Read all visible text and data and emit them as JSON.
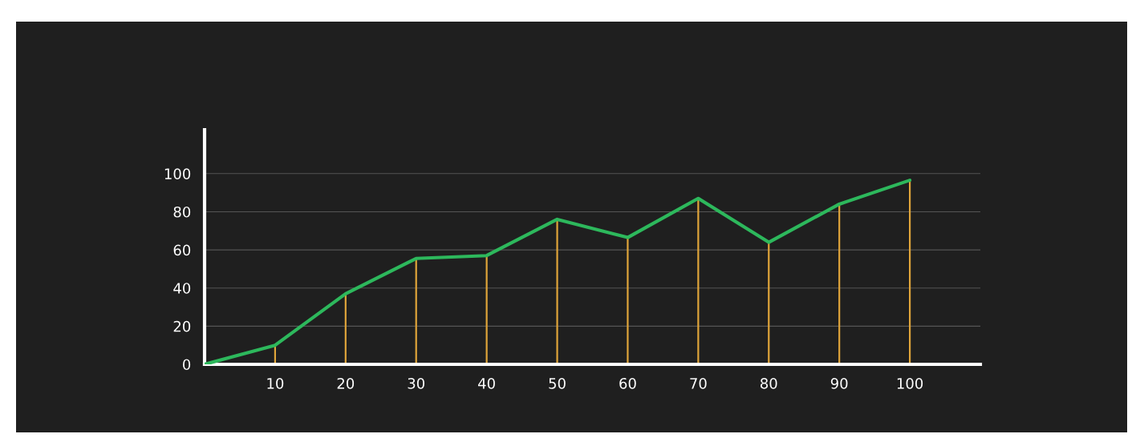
{
  "chart_data": {
    "type": "line",
    "x": [
      0,
      10,
      20,
      30,
      40,
      50,
      60,
      70,
      80,
      90,
      100
    ],
    "series": [
      {
        "type": "bar",
        "color": "#e0a53a",
        "values": [
          0,
          10,
          37,
          55.5,
          57,
          76,
          66.5,
          87,
          64,
          84,
          96.5
        ]
      },
      {
        "type": "line",
        "color": "#2db85c",
        "marker": "none",
        "line_style": "solid",
        "values": [
          0,
          10,
          37,
          55.5,
          57,
          76,
          66.5,
          87,
          64,
          84,
          96.5
        ]
      }
    ],
    "xlim": [
      0,
      110
    ],
    "xticks": [
      10,
      20,
      30,
      40,
      50,
      60,
      70,
      80,
      90,
      100
    ],
    "ylim": [
      0,
      123
    ],
    "yticks": [
      0,
      20,
      40,
      60,
      80,
      100
    ],
    "grid": "y",
    "legend": false
  }
}
